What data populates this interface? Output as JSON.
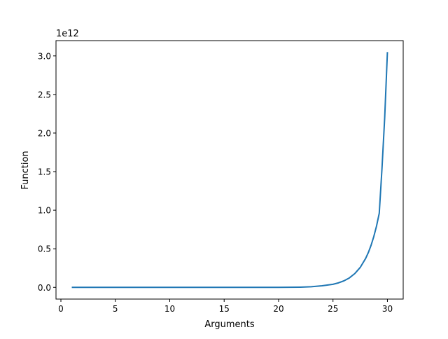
{
  "chart_data": {
    "type": "line",
    "title": "",
    "xlabel": "Arguments",
    "ylabel": "Function",
    "offset_label": "1e12",
    "xlim": [
      -0.45,
      31.45
    ],
    "ylim": [
      -0.152,
      3.198
    ],
    "x_ticks": [
      0,
      5,
      10,
      15,
      20,
      25,
      30
    ],
    "x_tick_labels": [
      "0",
      "5",
      "10",
      "15",
      "20",
      "25",
      "30"
    ],
    "y_ticks": [
      0.0,
      0.5,
      1.0,
      1.5,
      2.0,
      2.5,
      3.0
    ],
    "y_tick_labels": [
      "0.0",
      "0.5",
      "1.0",
      "1.5",
      "2.0",
      "2.5",
      "3.0"
    ],
    "y_unit_scale": 1000000000000.0,
    "grid": false,
    "series": [
      {
        "color": "#1f77b4",
        "x": [
          1,
          5,
          10,
          15,
          18,
          20,
          21,
          22,
          23,
          24,
          25,
          25.5,
          26,
          26.5,
          27,
          27.5,
          28,
          28.25,
          28.5,
          28.75,
          29,
          29.25,
          29.5,
          29.75,
          30
        ],
        "y": [
          0,
          0,
          0,
          1e-05,
          0.0001,
          0.0005,
          0.0011,
          0.0028,
          0.0075,
          0.02,
          0.04,
          0.058,
          0.084,
          0.122,
          0.178,
          0.258,
          0.375,
          0.452,
          0.546,
          0.659,
          0.795,
          0.96,
          1.54,
          2.2,
          3.05
        ]
      }
    ]
  }
}
